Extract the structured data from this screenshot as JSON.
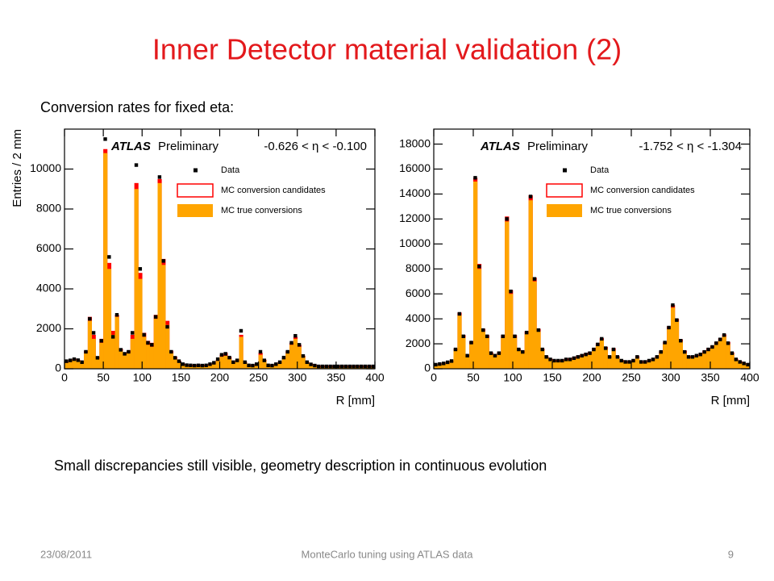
{
  "slide": {
    "title": "Inner Detector material validation (2)",
    "intro": "Conversion rates for fixed eta:",
    "note": "Small discrepancies still visible, geometry description in continuous evolution",
    "footer": {
      "date": "23/08/2011",
      "center": "MonteCarlo tuning using  ATLAS data",
      "page": "9"
    }
  },
  "chart_data": [
    {
      "type": "histogram",
      "annotation": [
        "ATLAS",
        "Preliminary",
        "-0.626 < η < -0.100"
      ],
      "xlabel": "R [mm]",
      "ylabel": "Entries / 2 mm",
      "xlim": [
        0,
        400
      ],
      "xticks": [
        0,
        50,
        100,
        150,
        200,
        250,
        300,
        350,
        400
      ],
      "ylim": [
        0,
        12000
      ],
      "yticks": [
        0,
        2000,
        4000,
        6000,
        8000,
        10000
      ],
      "bins": [
        0,
        5,
        10,
        15,
        20,
        25,
        30,
        35,
        40,
        45,
        50,
        55,
        60,
        65,
        70,
        75,
        80,
        85,
        90,
        95,
        100,
        105,
        110,
        115,
        120,
        125,
        130,
        135,
        140,
        145,
        150,
        155,
        160,
        165,
        170,
        175,
        180,
        185,
        190,
        195,
        200,
        205,
        210,
        215,
        220,
        225,
        230,
        235,
        240,
        245,
        250,
        255,
        260,
        265,
        270,
        275,
        280,
        285,
        290,
        295,
        300,
        305,
        310,
        315,
        320,
        325,
        330,
        335,
        340,
        345,
        350,
        355,
        360,
        365,
        370,
        375,
        380,
        385,
        390,
        395,
        400
      ],
      "series": [
        {
          "name": "Data",
          "color": "#000000",
          "style": "points",
          "values": [
            380,
            420,
            480,
            430,
            330,
            850,
            2500,
            1800,
            550,
            1400,
            11500,
            5600,
            1600,
            2700,
            950,
            750,
            850,
            1800,
            10200,
            5000,
            1700,
            1300,
            1200,
            2600,
            9600,
            5400,
            2100,
            850,
            550,
            380,
            230,
            180,
            170,
            160,
            170,
            160,
            170,
            230,
            300,
            480,
            700,
            750,
            560,
            330,
            420,
            1900,
            330,
            170,
            160,
            230,
            850,
            420,
            170,
            160,
            230,
            330,
            560,
            850,
            1300,
            1650,
            1200,
            640,
            330,
            220,
            160,
            120,
            120,
            120,
            120,
            120,
            120,
            120,
            120,
            120,
            120,
            120,
            120,
            120,
            120,
            120
          ]
        },
        {
          "name": "MC conversion candidates",
          "color": "#ff0000",
          "style": "line",
          "values": [
            350,
            450,
            500,
            450,
            350,
            900,
            2600,
            1700,
            600,
            1500,
            11000,
            5300,
            1900,
            2700,
            1000,
            800,
            900,
            1700,
            9300,
            4800,
            1800,
            1400,
            1300,
            2700,
            9500,
            5500,
            2400,
            900,
            600,
            400,
            250,
            200,
            200,
            200,
            200,
            200,
            200,
            250,
            300,
            450,
            700,
            800,
            600,
            350,
            450,
            1700,
            350,
            200,
            200,
            250,
            800,
            450,
            200,
            200,
            250,
            350,
            550,
            900,
            1300,
            1600,
            1200,
            650,
            350,
            250,
            200,
            150,
            150,
            150,
            150,
            150,
            150,
            150,
            150,
            150,
            150,
            150,
            150,
            150,
            150,
            150
          ]
        },
        {
          "name": "MC true conversions",
          "color": "#ffa500",
          "style": "fill",
          "values": [
            300,
            400,
            450,
            400,
            300,
            800,
            2400,
            1500,
            500,
            1300,
            10800,
            5000,
            1700,
            2600,
            900,
            700,
            800,
            1500,
            9000,
            4500,
            1600,
            1200,
            1100,
            2500,
            9300,
            5200,
            2200,
            800,
            500,
            350,
            200,
            150,
            150,
            150,
            150,
            150,
            150,
            200,
            250,
            400,
            600,
            650,
            500,
            300,
            400,
            1600,
            300,
            150,
            150,
            200,
            700,
            400,
            150,
            150,
            200,
            300,
            500,
            800,
            1200,
            1500,
            1100,
            600,
            300,
            200,
            150,
            100,
            100,
            100,
            100,
            100,
            100,
            100,
            100,
            100,
            100,
            100,
            100,
            100,
            100,
            100
          ]
        }
      ]
    },
    {
      "type": "histogram",
      "annotation": [
        "ATLAS",
        "Preliminary",
        "-1.752 < η < -1.304"
      ],
      "xlabel": "R [mm]",
      "xlim": [
        0,
        400
      ],
      "xticks": [
        0,
        50,
        100,
        150,
        200,
        250,
        300,
        350,
        400
      ],
      "ylim": [
        0,
        19200
      ],
      "yticks": [
        0,
        2000,
        4000,
        6000,
        8000,
        10000,
        12000,
        14000,
        16000,
        18000
      ],
      "bins": [
        0,
        5,
        10,
        15,
        20,
        25,
        30,
        35,
        40,
        45,
        50,
        55,
        60,
        65,
        70,
        75,
        80,
        85,
        90,
        95,
        100,
        105,
        110,
        115,
        120,
        125,
        130,
        135,
        140,
        145,
        150,
        155,
        160,
        165,
        170,
        175,
        180,
        185,
        190,
        195,
        200,
        205,
        210,
        215,
        220,
        225,
        230,
        235,
        240,
        245,
        250,
        255,
        260,
        265,
        270,
        275,
        280,
        285,
        290,
        295,
        300,
        305,
        310,
        315,
        320,
        325,
        330,
        335,
        340,
        345,
        350,
        355,
        360,
        365,
        370,
        375,
        380,
        385,
        390,
        395,
        400
      ],
      "series": [
        {
          "name": "Data",
          "color": "#000000",
          "style": "points",
          "values": [
            330,
            380,
            430,
            520,
            620,
            1550,
            4400,
            2600,
            1050,
            2100,
            15300,
            8200,
            3100,
            2600,
            1250,
            1050,
            1250,
            2600,
            12000,
            6200,
            2600,
            1550,
            1350,
            2900,
            13800,
            7200,
            3100,
            1550,
            950,
            750,
            650,
            650,
            650,
            750,
            750,
            850,
            950,
            1050,
            1150,
            1250,
            1550,
            1950,
            2400,
            1650,
            950,
            1550,
            950,
            650,
            550,
            550,
            650,
            950,
            550,
            550,
            650,
            750,
            950,
            1350,
            2100,
            3300,
            5100,
            3900,
            2250,
            1350,
            950,
            950,
            1050,
            1150,
            1350,
            1550,
            1750,
            2050,
            2350,
            2700,
            2050,
            1250,
            750,
            550,
            430,
            330
          ]
        },
        {
          "name": "MC conversion candidates",
          "color": "#ff0000",
          "style": "line",
          "values": [
            350,
            400,
            450,
            550,
            650,
            1600,
            4500,
            2700,
            1100,
            2200,
            15300,
            8400,
            3200,
            2700,
            1300,
            1100,
            1300,
            2700,
            12200,
            6300,
            2700,
            1600,
            1400,
            3000,
            13900,
            7300,
            3200,
            1600,
            1000,
            800,
            700,
            700,
            700,
            800,
            850,
            950,
            1050,
            1150,
            1250,
            1350,
            1650,
            2050,
            2450,
            1750,
            1000,
            1650,
            1000,
            700,
            600,
            600,
            700,
            1000,
            600,
            600,
            700,
            800,
            1000,
            1400,
            2150,
            3400,
            5100,
            4000,
            2350,
            1450,
            1000,
            1000,
            1100,
            1200,
            1450,
            1650,
            1850,
            2150,
            2450,
            2750,
            2150,
            1300,
            800,
            600,
            450,
            350
          ]
        },
        {
          "name": "MC true conversions",
          "color": "#ffa500",
          "style": "fill",
          "values": [
            300,
            350,
            400,
            500,
            600,
            1500,
            4300,
            2500,
            1000,
            2000,
            15000,
            8000,
            3000,
            2500,
            1200,
            1000,
            1200,
            2500,
            11800,
            6000,
            2500,
            1500,
            1300,
            2800,
            13500,
            7000,
            3000,
            1500,
            900,
            700,
            600,
            600,
            600,
            700,
            700,
            800,
            900,
            1000,
            1100,
            1200,
            1500,
            1900,
            2300,
            1600,
            900,
            1500,
            900,
            600,
            500,
            500,
            600,
            900,
            500,
            500,
            600,
            700,
            900,
            1300,
            2000,
            3200,
            4900,
            3800,
            2200,
            1300,
            900,
            900,
            1000,
            1100,
            1300,
            1500,
            1700,
            2000,
            2300,
            2600,
            2000,
            1200,
            700,
            500,
            400,
            300
          ]
        }
      ]
    }
  ]
}
